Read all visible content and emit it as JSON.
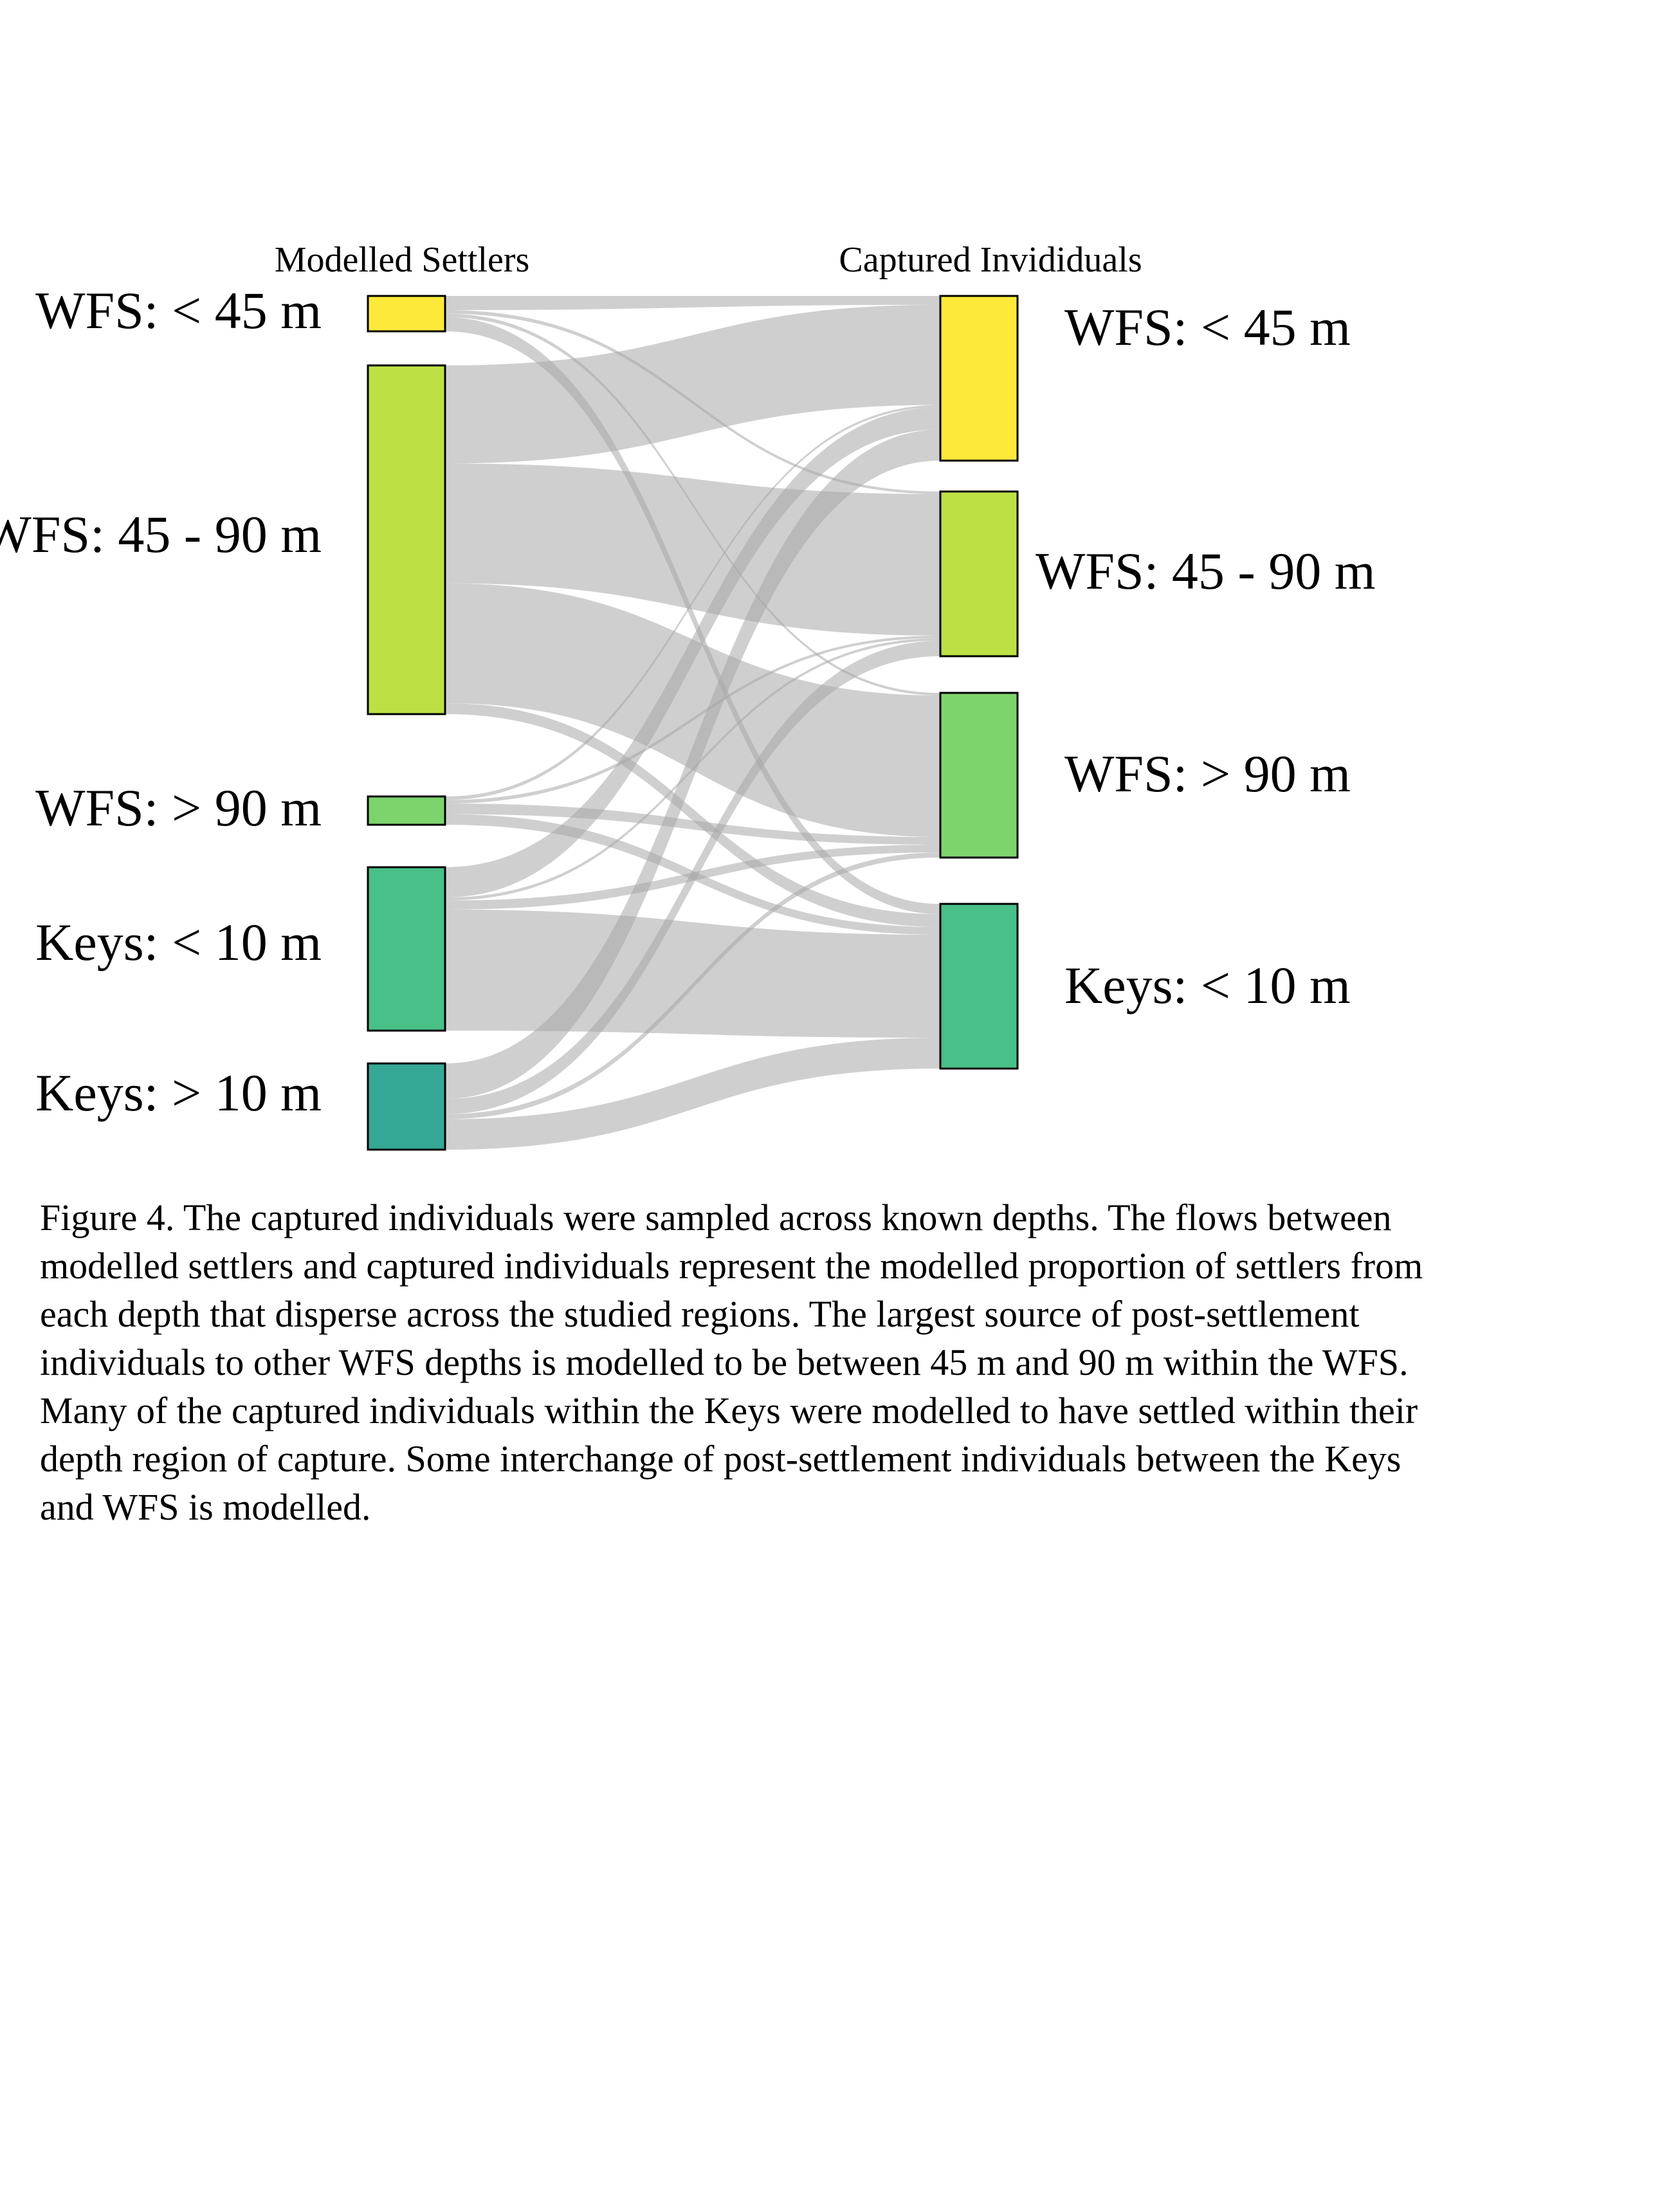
{
  "chart_data": {
    "type": "sankey",
    "left_title": "Modelled Settlers",
    "right_title": "Captured Invididuals",
    "sources": [
      {
        "label": "WFS: < 45 m",
        "color": "#fde93a"
      },
      {
        "label": "WFS: 45 - 90 m",
        "color": "#bde145"
      },
      {
        "label": "WFS: > 90 m",
        "color": "#7dd46c"
      },
      {
        "label": "Keys: < 10 m",
        "color": "#49c088"
      },
      {
        "label": "Keys: > 10 m",
        "color": "#36a896"
      }
    ],
    "targets": [
      {
        "label": "WFS: < 45 m",
        "color": "#fde93a"
      },
      {
        "label": "WFS: 45 - 90 m",
        "color": "#bde145"
      },
      {
        "label": "WFS: > 90 m",
        "color": "#7dd46c"
      },
      {
        "label": "Keys: < 10 m",
        "color": "#49c088"
      }
    ],
    "flows": [
      {
        "source": 0,
        "target": 0,
        "value": 0.04
      },
      {
        "source": 0,
        "target": 1,
        "value": 0.01
      },
      {
        "source": 0,
        "target": 2,
        "value": 0.01
      },
      {
        "source": 0,
        "target": 3,
        "value": 0.04
      },
      {
        "source": 1,
        "target": 0,
        "value": 0.45
      },
      {
        "source": 1,
        "target": 1,
        "value": 0.55
      },
      {
        "source": 1,
        "target": 2,
        "value": 0.55
      },
      {
        "source": 1,
        "target": 3,
        "value": 0.05
      },
      {
        "source": 2,
        "target": 0,
        "value": 0.01
      },
      {
        "source": 2,
        "target": 1,
        "value": 0.01
      },
      {
        "source": 2,
        "target": 2,
        "value": 0.03
      },
      {
        "source": 2,
        "target": 3,
        "value": 0.03
      },
      {
        "source": 3,
        "target": 0,
        "value": 0.1
      },
      {
        "source": 3,
        "target": 1,
        "value": 0.01
      },
      {
        "source": 3,
        "target": 2,
        "value": 0.03
      },
      {
        "source": 3,
        "target": 3,
        "value": 0.4
      },
      {
        "source": 4,
        "target": 0,
        "value": 0.14
      },
      {
        "source": 4,
        "target": 1,
        "value": 0.06
      },
      {
        "source": 4,
        "target": 2,
        "value": 0.02
      },
      {
        "source": 4,
        "target": 3,
        "value": 0.12
      }
    ]
  },
  "caption": "Figure 4. The captured individuals were sampled across known depths. The flows between modelled settlers and captured individuals represent the modelled proportion of settlers from each depth that disperse across the studied regions. The largest source of post-settlement individuals to other WFS depths is modelled to be between 45 m and 90 m within the WFS. Many of the captured individuals within the Keys were modelled to have settled within their depth region of capture. Some interchange of post-settlement individuals between the Keys and WFS is modelled."
}
